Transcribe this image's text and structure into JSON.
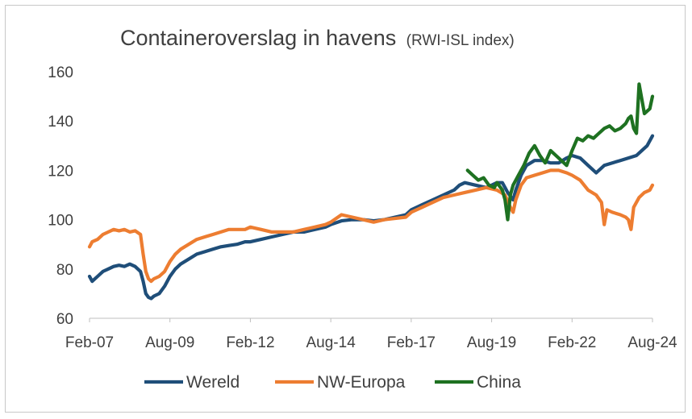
{
  "chart_data": {
    "type": "line",
    "title": "Containeroverslag in havens",
    "subtitle": "(RWI-ISL index)",
    "xlabel": "",
    "ylabel": "",
    "x_ticks": [
      "Feb-07",
      "Aug-09",
      "Feb-12",
      "Aug-14",
      "Feb-17",
      "Aug-19",
      "Feb-22",
      "Aug-24"
    ],
    "ylim": [
      60,
      160
    ],
    "y_ticks": [
      60,
      80,
      100,
      120,
      140,
      160
    ],
    "grid": false,
    "legend": "bottom",
    "colors": {
      "Wereld": "#1f4e79",
      "NW-Europa": "#ed7d31",
      "China": "#1e7121"
    },
    "series": [
      {
        "name": "Wereld",
        "x": [
          "2007-02",
          "2007-03",
          "2007-05",
          "2007-07",
          "2007-09",
          "2007-11",
          "2008-01",
          "2008-03",
          "2008-05",
          "2008-07",
          "2008-09",
          "2008-10",
          "2008-11",
          "2008-12",
          "2009-01",
          "2009-02",
          "2009-04",
          "2009-06",
          "2009-08",
          "2009-10",
          "2009-12",
          "2010-03",
          "2010-06",
          "2010-09",
          "2010-12",
          "2011-03",
          "2011-06",
          "2011-09",
          "2011-12",
          "2012-02",
          "2012-06",
          "2012-10",
          "2013-02",
          "2013-06",
          "2013-10",
          "2014-02",
          "2014-06",
          "2014-08",
          "2014-12",
          "2015-04",
          "2015-08",
          "2015-12",
          "2016-04",
          "2016-08",
          "2016-12",
          "2017-02",
          "2017-06",
          "2017-10",
          "2018-02",
          "2018-06",
          "2018-08",
          "2018-10",
          "2019-02",
          "2019-06",
          "2019-08",
          "2019-10",
          "2019-12",
          "2020-02",
          "2020-04",
          "2020-05",
          "2020-07",
          "2020-09",
          "2020-12",
          "2021-03",
          "2021-06",
          "2021-09",
          "2021-12",
          "2022-02",
          "2022-05",
          "2022-08",
          "2022-11",
          "2023-02",
          "2023-05",
          "2023-08",
          "2023-11",
          "2024-02",
          "2024-04",
          "2024-06",
          "2024-08"
        ],
        "values": [
          77,
          75,
          77,
          79,
          80,
          81,
          81.5,
          81,
          82,
          81,
          79,
          75,
          70,
          68.5,
          68,
          69,
          70,
          73,
          77,
          80,
          82,
          84,
          86,
          87,
          88,
          89,
          89.5,
          90,
          91,
          91,
          92,
          93,
          94,
          95,
          95,
          96,
          97,
          98,
          99.5,
          100,
          100,
          99.5,
          100,
          101,
          102,
          104,
          106,
          108,
          110,
          112,
          114,
          115,
          114,
          113,
          114,
          115,
          115,
          111,
          108,
          112,
          118,
          122,
          124,
          124,
          123,
          123,
          125,
          126,
          125,
          122,
          119,
          122,
          123,
          124,
          125,
          126,
          128,
          130,
          134
        ]
      },
      {
        "name": "NW-Europa",
        "x": [
          "2007-02",
          "2007-03",
          "2007-05",
          "2007-07",
          "2007-09",
          "2007-11",
          "2008-01",
          "2008-03",
          "2008-05",
          "2008-07",
          "2008-09",
          "2008-10",
          "2008-11",
          "2008-12",
          "2009-01",
          "2009-02",
          "2009-04",
          "2009-06",
          "2009-08",
          "2009-10",
          "2009-12",
          "2010-03",
          "2010-06",
          "2010-09",
          "2010-12",
          "2011-03",
          "2011-06",
          "2011-09",
          "2011-12",
          "2012-02",
          "2012-06",
          "2012-10",
          "2013-02",
          "2013-06",
          "2013-10",
          "2014-02",
          "2014-06",
          "2014-08",
          "2014-12",
          "2015-04",
          "2015-08",
          "2015-12",
          "2016-04",
          "2016-08",
          "2016-12",
          "2017-02",
          "2017-06",
          "2017-10",
          "2018-02",
          "2018-06",
          "2018-10",
          "2019-02",
          "2019-06",
          "2019-10",
          "2020-01",
          "2020-03",
          "2020-04",
          "2020-05",
          "2020-07",
          "2020-09",
          "2020-12",
          "2021-03",
          "2021-06",
          "2021-09",
          "2021-12",
          "2022-02",
          "2022-05",
          "2022-08",
          "2022-11",
          "2023-01",
          "2023-02",
          "2023-03",
          "2023-05",
          "2023-08",
          "2023-10",
          "2023-11",
          "2023-12",
          "2024-01",
          "2024-03",
          "2024-05",
          "2024-07",
          "2024-08"
        ],
        "values": [
          89,
          91,
          92,
          94,
          95,
          96,
          95.5,
          96,
          95,
          95.5,
          94,
          86,
          79,
          76,
          75,
          76,
          77,
          79,
          83,
          86,
          88,
          90,
          92,
          93,
          94,
          95,
          96,
          96,
          96,
          97,
          96,
          95,
          95,
          95,
          96,
          97,
          98,
          99,
          102,
          101,
          100,
          99,
          100,
          100.5,
          101,
          103,
          105,
          107,
          109,
          110,
          111,
          112,
          113,
          112,
          110,
          105,
          103,
          108,
          114,
          117,
          118,
          119,
          120,
          120,
          119,
          118,
          116,
          112,
          110,
          107,
          98,
          104,
          103,
          102,
          101,
          100,
          96,
          105,
          109,
          111,
          112,
          114
        ]
      },
      {
        "name": "China",
        "x": [
          "2018-11",
          "2019-01",
          "2019-03",
          "2019-05",
          "2019-07",
          "2019-09",
          "2019-10",
          "2019-12",
          "2020-01",
          "2020-02",
          "2020-03",
          "2020-04",
          "2020-06",
          "2020-08",
          "2020-10",
          "2020-12",
          "2021-02",
          "2021-04",
          "2021-06",
          "2021-08",
          "2021-10",
          "2021-12",
          "2022-02",
          "2022-04",
          "2022-06",
          "2022-08",
          "2022-10",
          "2022-12",
          "2023-02",
          "2023-04",
          "2023-06",
          "2023-08",
          "2023-10",
          "2023-11",
          "2023-12",
          "2024-01",
          "2024-02",
          "2024-03",
          "2024-05",
          "2024-07",
          "2024-08"
        ],
        "values": [
          120,
          118,
          116,
          117,
          114,
          113,
          115,
          112,
          108,
          100,
          110,
          114,
          118,
          122,
          127,
          130,
          126,
          123,
          128,
          126,
          124,
          122,
          128,
          133,
          132,
          134,
          133,
          135,
          137,
          138,
          136,
          137,
          139,
          141,
          142,
          137,
          135,
          155,
          143,
          145,
          150
        ]
      }
    ]
  }
}
